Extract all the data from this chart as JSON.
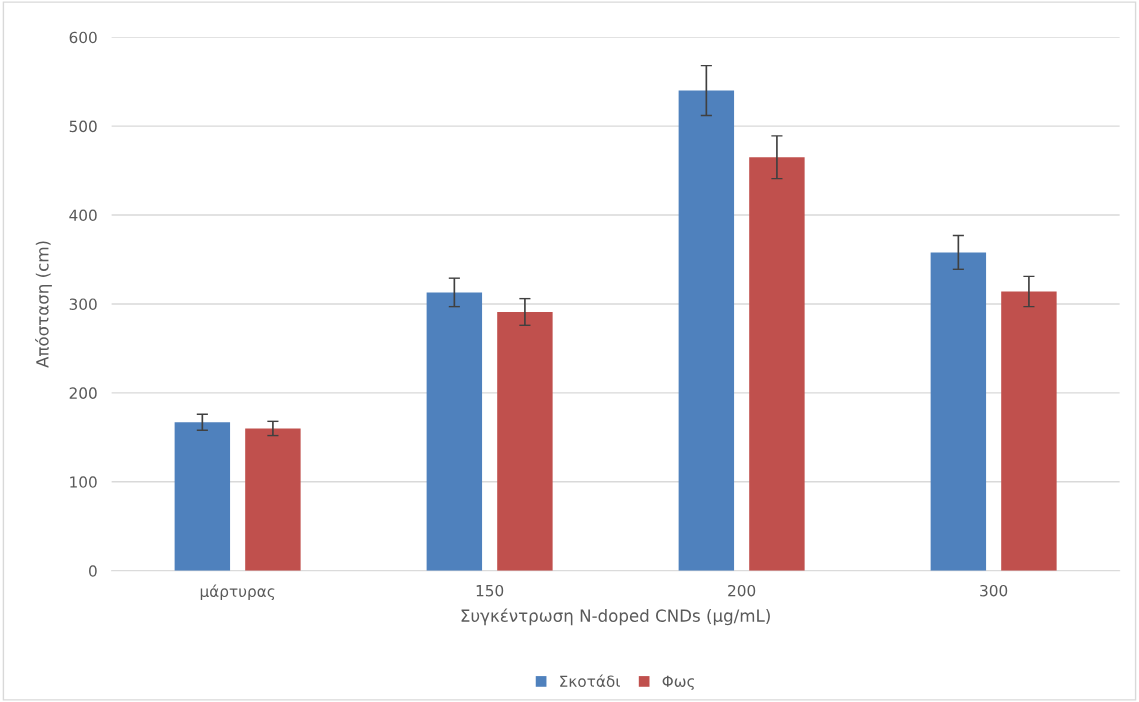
{
  "chart_data": {
    "type": "bar",
    "xlabel": "Συγκέντρωση N-doped CNDs (μg/mL)",
    "ylabel": "Απόσταση (cm)",
    "categories": [
      "μάρτυρας",
      "150",
      "200",
      "300"
    ],
    "series": [
      {
        "name": "Σκοτάδι",
        "color": "#4f81bd",
        "values": [
          167,
          313,
          540,
          358
        ],
        "errors": [
          9,
          16,
          28,
          19
        ]
      },
      {
        "name": "Φως",
        "color": "#c0504d",
        "values": [
          160,
          291,
          465,
          314
        ],
        "errors": [
          8,
          15,
          24,
          17
        ]
      }
    ],
    "ylim": [
      0,
      600
    ],
    "yticks": [
      0,
      100,
      200,
      300,
      400,
      500,
      600
    ],
    "grid": "y",
    "legend": "bottom"
  }
}
